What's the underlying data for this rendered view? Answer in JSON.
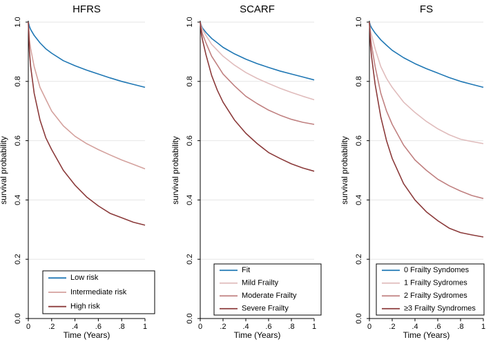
{
  "chart_data": [
    {
      "type": "line",
      "title": "HFRS",
      "xlabel": "Time (Years)",
      "ylabel": "survival probability",
      "xlim": [
        0,
        1
      ],
      "ylim": [
        0,
        1
      ],
      "x_ticks": [
        "0",
        ".2",
        ".4",
        ".6",
        ".8",
        "1"
      ],
      "y_ticks": [
        "0.0",
        "0.2",
        "0.4",
        "0.6",
        "0.8",
        "1.0"
      ],
      "grid": true,
      "legend_position": "bottom",
      "x": [
        0,
        0.01,
        0.02,
        0.05,
        0.1,
        0.15,
        0.2,
        0.3,
        0.4,
        0.5,
        0.6,
        0.7,
        0.8,
        0.9,
        1.0
      ],
      "series": [
        {
          "name": "Low risk",
          "color": "#1f77b4",
          "values": [
            1.0,
            0.985,
            0.975,
            0.955,
            0.93,
            0.91,
            0.895,
            0.87,
            0.853,
            0.838,
            0.825,
            0.812,
            0.8,
            0.79,
            0.78
          ]
        },
        {
          "name": "Intermediate risk",
          "color": "#d4a19d",
          "values": [
            1.0,
            0.94,
            0.91,
            0.85,
            0.78,
            0.74,
            0.7,
            0.65,
            0.615,
            0.59,
            0.57,
            0.552,
            0.535,
            0.52,
            0.505
          ]
        },
        {
          "name": "High risk",
          "color": "#8b3a3a",
          "values": [
            1.0,
            0.9,
            0.85,
            0.76,
            0.67,
            0.61,
            0.57,
            0.5,
            0.45,
            0.41,
            0.38,
            0.355,
            0.34,
            0.325,
            0.315
          ]
        }
      ]
    },
    {
      "type": "line",
      "title": "SCARF",
      "xlabel": "Time (Years)",
      "ylabel": "survival probability",
      "xlim": [
        0,
        1
      ],
      "ylim": [
        0,
        1
      ],
      "x_ticks": [
        "0",
        ".2",
        ".4",
        ".6",
        ".8",
        "1"
      ],
      "y_ticks": [
        "0.0",
        "0.2",
        "0.4",
        "0.6",
        "0.8",
        "1.0"
      ],
      "grid": true,
      "legend_position": "bottom",
      "x": [
        0,
        0.01,
        0.02,
        0.05,
        0.1,
        0.15,
        0.2,
        0.3,
        0.4,
        0.5,
        0.6,
        0.7,
        0.8,
        0.9,
        1.0
      ],
      "series": [
        {
          "name": "Fit",
          "color": "#1f77b4",
          "values": [
            1.0,
            0.988,
            0.98,
            0.965,
            0.945,
            0.93,
            0.915,
            0.893,
            0.875,
            0.86,
            0.847,
            0.835,
            0.825,
            0.815,
            0.805
          ]
        },
        {
          "name": "Mild Frailty",
          "color": "#e0bcbc",
          "values": [
            1.0,
            0.985,
            0.975,
            0.955,
            0.925,
            0.905,
            0.885,
            0.855,
            0.83,
            0.81,
            0.793,
            0.777,
            0.763,
            0.75,
            0.738
          ]
        },
        {
          "name": "Moderate Frailty",
          "color": "#c08080",
          "values": [
            1.0,
            0.975,
            0.96,
            0.93,
            0.885,
            0.855,
            0.825,
            0.785,
            0.75,
            0.725,
            0.703,
            0.686,
            0.672,
            0.662,
            0.655
          ]
        },
        {
          "name": "Severe Frailty",
          "color": "#8b3a3a",
          "values": [
            1.0,
            0.96,
            0.94,
            0.89,
            0.82,
            0.77,
            0.73,
            0.67,
            0.625,
            0.59,
            0.56,
            0.54,
            0.522,
            0.508,
            0.497
          ]
        }
      ]
    },
    {
      "type": "line",
      "title": "FS",
      "xlabel": "Time (Years)",
      "ylabel": "survival probability",
      "xlim": [
        0,
        1
      ],
      "ylim": [
        0,
        1
      ],
      "x_ticks": [
        "0",
        ".2",
        ".4",
        ".6",
        ".8",
        "1"
      ],
      "y_ticks": [
        "0.0",
        "0.2",
        "0.4",
        "0.6",
        "0.8",
        "1.0"
      ],
      "grid": true,
      "legend_position": "bottom",
      "x": [
        0,
        0.01,
        0.02,
        0.05,
        0.1,
        0.15,
        0.2,
        0.3,
        0.4,
        0.5,
        0.6,
        0.7,
        0.8,
        0.9,
        1.0
      ],
      "series": [
        {
          "name": "0 Frailty Syndomes",
          "color": "#1f77b4",
          "values": [
            1.0,
            0.988,
            0.98,
            0.963,
            0.94,
            0.922,
            0.905,
            0.88,
            0.86,
            0.843,
            0.828,
            0.813,
            0.8,
            0.79,
            0.78
          ]
        },
        {
          "name": "1 Frailty Sydromes",
          "color": "#e0bcbc",
          "values": [
            1.0,
            0.97,
            0.955,
            0.91,
            0.85,
            0.81,
            0.78,
            0.73,
            0.695,
            0.665,
            0.64,
            0.62,
            0.605,
            0.597,
            0.59
          ]
        },
        {
          "name": "2 Frailty Sydromes",
          "color": "#c08080",
          "values": [
            1.0,
            0.95,
            0.92,
            0.85,
            0.76,
            0.7,
            0.655,
            0.585,
            0.535,
            0.5,
            0.47,
            0.448,
            0.43,
            0.415,
            0.405
          ]
        },
        {
          "name": "≥3 Frailty Syndromes",
          "color": "#8b3a3a",
          "values": [
            1.0,
            0.92,
            0.88,
            0.79,
            0.68,
            0.6,
            0.54,
            0.455,
            0.4,
            0.36,
            0.33,
            0.305,
            0.29,
            0.282,
            0.275
          ]
        }
      ]
    }
  ]
}
